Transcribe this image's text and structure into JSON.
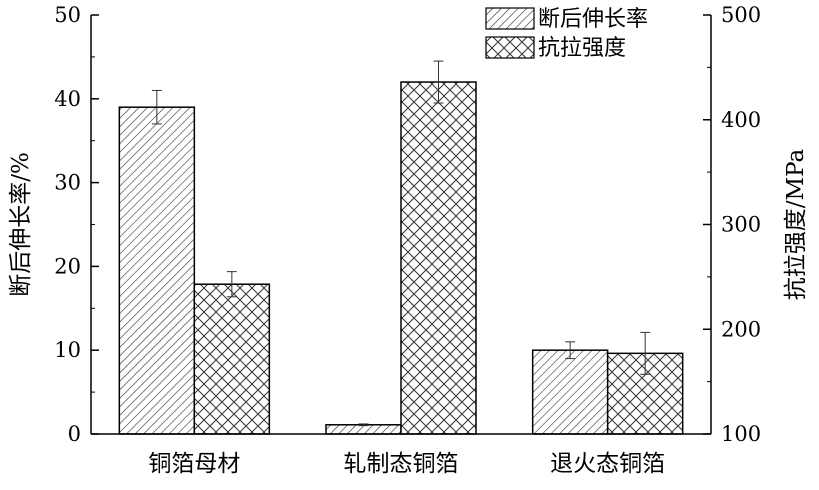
{
  "chart_data": {
    "type": "bar",
    "categories": [
      "铜箔母材",
      "轧制态铜箔",
      "退火态铜箔"
    ],
    "series": [
      {
        "name": "断后伸长率",
        "axis": "left",
        "pattern": "diagonal-hatch",
        "values": [
          39.0,
          1.1,
          10.0
        ],
        "errors": [
          2.0,
          0.1,
          1.0
        ]
      },
      {
        "name": "抗拉强度",
        "axis": "right",
        "pattern": "cross-hatch",
        "values": [
          243,
          436,
          177
        ],
        "errors": [
          12,
          20,
          20
        ]
      }
    ],
    "y_left": {
      "label": "断后伸长率/%",
      "ylim": [
        0,
        50
      ],
      "ticks": [
        "0",
        "10",
        "20",
        "30",
        "40",
        "50"
      ]
    },
    "y_right": {
      "label": "抗拉强度/MPa",
      "ylim": [
        100,
        500
      ],
      "ticks": [
        "100",
        "200",
        "300",
        "400",
        "500"
      ]
    },
    "legend": {
      "position": "top-right"
    },
    "grid": false,
    "colors": {
      "stroke": "#000000",
      "background": "#ffffff"
    }
  }
}
